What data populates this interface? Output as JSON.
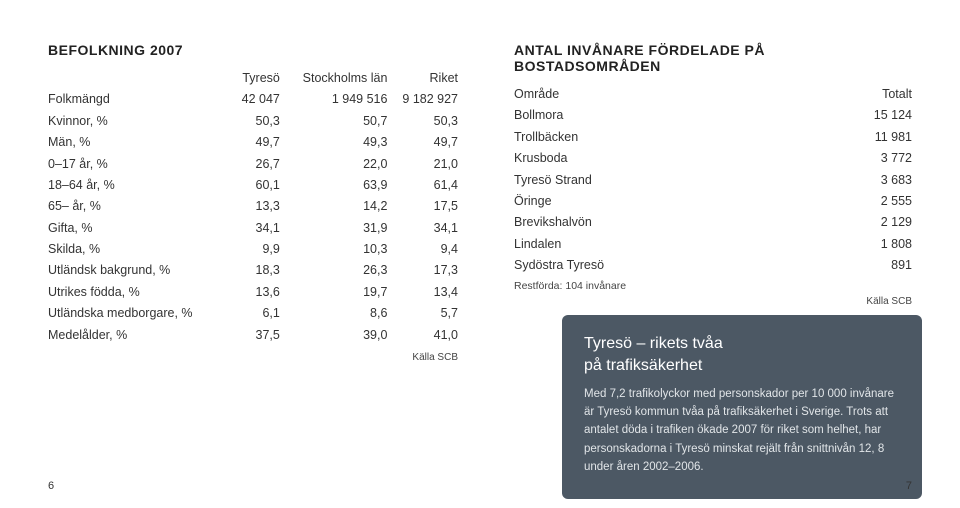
{
  "left": {
    "title": "BEFOLKNING 2007",
    "columns": [
      "",
      "Tyresö",
      "Stockholms län",
      "Riket"
    ],
    "rows": [
      [
        "Folkmängd",
        "42 047",
        "1 949 516",
        "9 182 927"
      ],
      [
        "Kvinnor, %",
        "50,3",
        "50,7",
        "50,3"
      ],
      [
        "Män, %",
        "49,7",
        "49,3",
        "49,7"
      ],
      [
        "0–17 år, %",
        "26,7",
        "22,0",
        "21,0"
      ],
      [
        "18–64 år, %",
        "60,1",
        "63,9",
        "61,4"
      ],
      [
        "65– år, %",
        "13,3",
        "14,2",
        "17,5"
      ],
      [
        "Gifta, %",
        "34,1",
        "31,9",
        "34,1"
      ],
      [
        "Skilda, %",
        "9,9",
        "10,3",
        "9,4"
      ],
      [
        "Utländsk bakgrund, %",
        "18,3",
        "26,3",
        "17,3"
      ],
      [
        "Utrikes födda, %",
        "13,6",
        "19,7",
        "13,4"
      ],
      [
        "Utländska medborgare, %",
        "6,1",
        "8,6",
        "5,7"
      ],
      [
        "Medelålder, %",
        "37,5",
        "39,0",
        "41,0"
      ]
    ],
    "source": "Källa SCB"
  },
  "right": {
    "title": "ANTAL INVÅNARE FÖRDELADE PÅ BOSTADSOMRÅDEN",
    "columns": [
      "Område",
      "Totalt"
    ],
    "rows": [
      [
        "Bollmora",
        "15 124"
      ],
      [
        "Trollbäcken",
        "11 981"
      ],
      [
        "Krusboda",
        "3 772"
      ],
      [
        "Tyresö Strand",
        "3 683"
      ],
      [
        "Öringe",
        "2 555"
      ],
      [
        "Brevikshalvön",
        "2 129"
      ],
      [
        "Lindalen",
        "1 808"
      ],
      [
        "Sydöstra Tyresö",
        "891"
      ]
    ],
    "rest": "Restförda: 104 invånare",
    "source": "Källa SCB"
  },
  "callout": {
    "title_line1": "Tyresö – rikets tvåa",
    "title_line2": "på trafiksäkerhet",
    "body": "Med 7,2 trafikolyckor med personskador per 10 000 invånare är Tyresö kommun tvåa på trafiksäkerhet i Sverige. Trots att antalet döda i trafiken ökade 2007 för riket som helhet, har personskadorna i Tyresö minskat rejält från snittnivån 12, 8 under åren 2002–2006.",
    "bg": "#4c5864",
    "fg": "#ffffff",
    "body_fg": "#e1e5e8"
  },
  "page_left": "6",
  "page_right": "7"
}
